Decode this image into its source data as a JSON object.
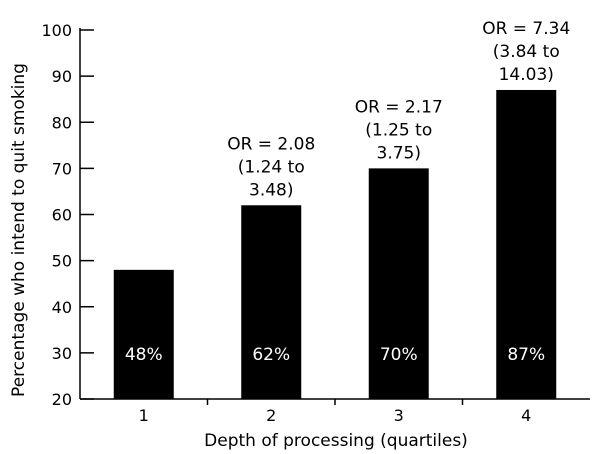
{
  "chart_data": {
    "type": "bar",
    "title": "",
    "xlabel": "Depth of processing (quartiles)",
    "ylabel": "Percentage who intend to quit smoking",
    "categories": [
      "1",
      "2",
      "3",
      "4"
    ],
    "values": [
      48,
      62,
      70,
      87
    ],
    "data_labels": [
      "48%",
      "62%",
      "70%",
      "87%"
    ],
    "annotations": [
      null,
      [
        "OR = 2.08",
        "(1.24 to",
        "3.48)"
      ],
      [
        "OR = 2.17",
        "(1.25 to",
        "3.75)"
      ],
      [
        "OR = 7.34",
        "(3.84 to",
        "14.03)"
      ]
    ],
    "ylim": [
      20,
      100
    ],
    "yticks": [
      20,
      30,
      40,
      50,
      60,
      70,
      80,
      90,
      100
    ],
    "grid": false,
    "bar_color": "#000000"
  }
}
